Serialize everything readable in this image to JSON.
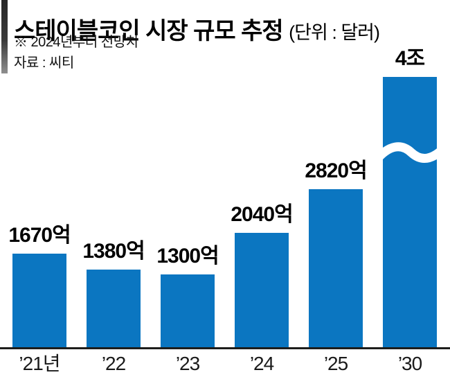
{
  "header": {
    "title": "스테이블코인 시장 규모 추정",
    "unit_label": "(단위 : 달러)",
    "note": "※ 2024년부터 전망치",
    "source": "자료 : 씨티"
  },
  "colors": {
    "bar": "#0b76c1",
    "axis": "#1d1d1b",
    "text": "#000000",
    "accent_bar_top": "#262626",
    "accent_bar_bottom": "#8f8f8f",
    "axis_break": "#ffffff"
  },
  "chart_data": {
    "type": "bar",
    "title": "스테이블코인 시장 규모 추정",
    "unit": "달러",
    "note": "※ 2024년부터 전망치",
    "source": "자료 : 씨티",
    "categories": [
      "’21년",
      "’22",
      "’23",
      "’24",
      "’25",
      "’30"
    ],
    "values_in_eok": [
      1670,
      1380,
      1300,
      2040,
      2820,
      40000
    ],
    "value_labels": [
      "1670억",
      "1380억",
      "1300억",
      "2040억",
      "2820억",
      "4조"
    ],
    "bar_color": "#0b76c1",
    "broken_axis_category": "’30",
    "axis_break_icon": "wave",
    "legend": "none",
    "grid": "off",
    "ylim_display": [
      0,
      3000
    ]
  }
}
